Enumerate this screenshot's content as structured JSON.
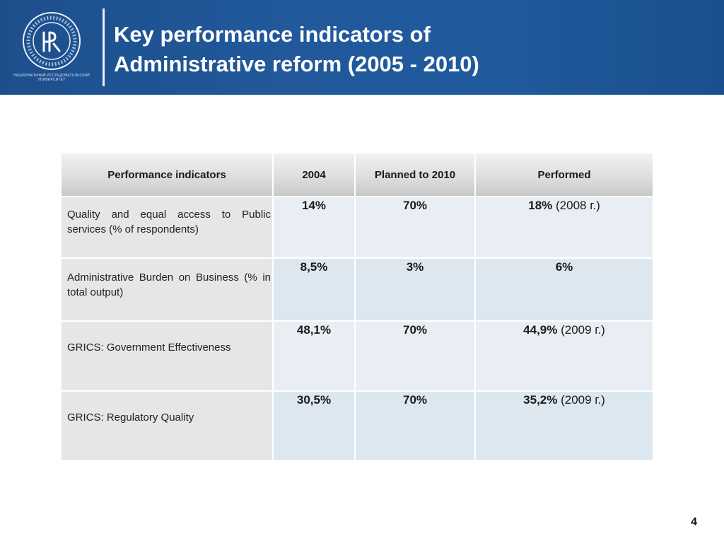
{
  "header": {
    "title_line1": "Key performance indicators of",
    "title_line2": "Administrative reform (2005 - 2010)",
    "logo_caption_line1": "НАЦИОНАЛЬНЫЙ ИССЛЕДОВАТЕЛЬСКИЙ",
    "logo_caption_line2": "УНИВЕРСИТЕТ"
  },
  "table": {
    "columns": [
      "Performance indicators",
      "2004",
      "Planned to 2010",
      "Performed"
    ],
    "rows": [
      {
        "indicator": "Quality and equal access to Public services (% of respondents)",
        "y2004": "14%",
        "planned": "70%",
        "performed": "18%",
        "performed_note": " (2008 г.)"
      },
      {
        "indicator": "Administrative Burden on Business (% in total output)",
        "y2004": "8,5%",
        "planned": "3%",
        "performed": "6%",
        "performed_note": ""
      },
      {
        "indicator": "GRICS: Government Effectiveness",
        "y2004": "48,1%",
        "planned": "70%",
        "performed": "44,9%",
        "performed_note": " (2009 г.)"
      },
      {
        "indicator": "GRICS: Regulatory Quality",
        "y2004": "30,5%",
        "planned": "70%",
        "performed": "35,2%",
        "performed_note": " (2009 г.)"
      }
    ]
  },
  "footer": {
    "page_number": "4"
  }
}
